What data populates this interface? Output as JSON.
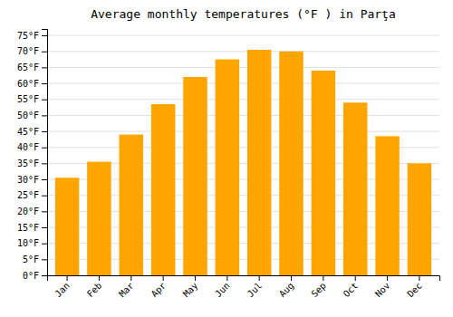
{
  "chart_data": {
    "type": "bar",
    "title": "Average monthly temperatures (°F ) in Parţa",
    "categories": [
      "Jan",
      "Feb",
      "Mar",
      "Apr",
      "May",
      "Jun",
      "Jul",
      "Aug",
      "Sep",
      "Oct",
      "Nov",
      "Dec"
    ],
    "values": [
      30.5,
      35.5,
      44,
      53.5,
      62,
      67.5,
      70.5,
      70,
      64,
      54,
      43.5,
      35
    ],
    "color": "#FFA500",
    "ylim": [
      0,
      77
    ],
    "yticks": [
      {
        "value": 0,
        "label": "0°F"
      },
      {
        "value": 5,
        "label": "5°F"
      },
      {
        "value": 10,
        "label": "10°F"
      },
      {
        "value": 15,
        "label": "15°F"
      },
      {
        "value": 20,
        "label": "20°F"
      },
      {
        "value": 25,
        "label": "25°F"
      },
      {
        "value": 30,
        "label": "30°F"
      },
      {
        "value": 35,
        "label": "35°F"
      },
      {
        "value": 40,
        "label": "40°F"
      },
      {
        "value": 45,
        "label": "45°F"
      },
      {
        "value": 50,
        "label": "50°F"
      },
      {
        "value": 55,
        "label": "55°F"
      },
      {
        "value": 60,
        "label": "60°F"
      },
      {
        "value": 65,
        "label": "65°F"
      },
      {
        "value": 70,
        "label": "70°F"
      },
      {
        "value": 75,
        "label": "75°F"
      }
    ],
    "grid": true
  }
}
